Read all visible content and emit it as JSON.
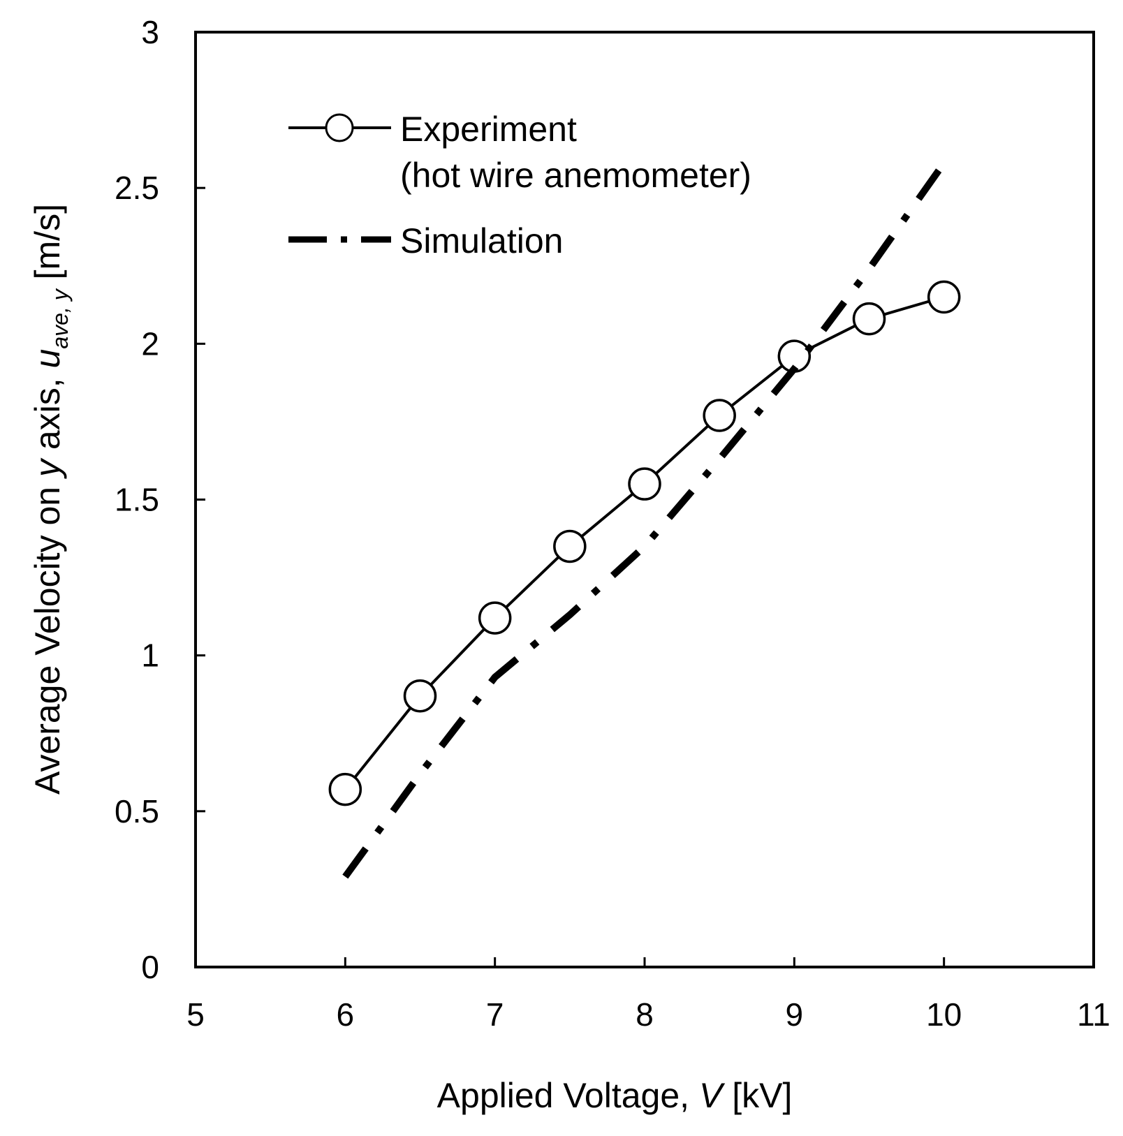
{
  "chart_data": {
    "type": "line",
    "xlabel_parts": [
      "Applied Voltage, ",
      "V",
      " [kV]"
    ],
    "ylabel_parts": [
      "Average Velocity on ",
      "y",
      " axis, ",
      "u",
      "ave, y",
      " [m/s]"
    ],
    "xlim": [
      5,
      11
    ],
    "ylim": [
      0,
      3
    ],
    "x_ticks": [
      5,
      6,
      7,
      8,
      9,
      10,
      11
    ],
    "y_ticks": [
      0,
      0.5,
      1,
      1.5,
      2,
      2.5,
      3
    ],
    "x_tick_labels": [
      "5",
      "6",
      "7",
      "8",
      "9",
      "10",
      "11"
    ],
    "y_tick_labels": [
      "0",
      "0.5",
      "1",
      "1.5",
      "2",
      "2.5",
      "3"
    ],
    "grid": false,
    "legend_position": "top-left",
    "series": [
      {
        "name": "Experiment",
        "legend_line1": "Experiment",
        "legend_line2": "(hot wire anemometer)",
        "style": "solid-circle-markers",
        "color": "#000000",
        "x": [
          6,
          6.5,
          7,
          7.5,
          8,
          8.5,
          9,
          9.5,
          10
        ],
        "y": [
          0.57,
          0.87,
          1.12,
          1.35,
          1.55,
          1.77,
          1.96,
          2.08,
          2.15
        ]
      },
      {
        "name": "Simulation",
        "legend_line1": "Simulation",
        "style": "dash-dot",
        "color": "#000000",
        "x": [
          6,
          6.5,
          7,
          7.5,
          8,
          8.5,
          9,
          9.5,
          10
        ],
        "y": [
          0.29,
          0.62,
          0.93,
          1.13,
          1.35,
          1.63,
          1.92,
          2.24,
          2.58
        ]
      }
    ]
  }
}
